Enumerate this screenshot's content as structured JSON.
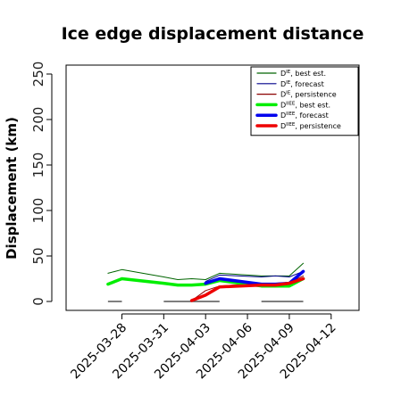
{
  "chart_data": {
    "type": "line",
    "title": "Ice edge displacement distance",
    "ylabel": "Displacement (km)",
    "xlabel": "",
    "ylim": [
      0,
      260
    ],
    "yticks": [
      0,
      50,
      100,
      150,
      200,
      250
    ],
    "xlim": [
      "2025-03-24",
      "2025-04-14"
    ],
    "xticks": [
      {
        "date": "2025-03-28",
        "label": "2025-03-28",
        "color": "#000000"
      },
      {
        "date": "2025-03-31",
        "label": "2025-03-31",
        "color": "#000000"
      },
      {
        "date": "2025-04-03",
        "label": "2025-04-03",
        "color": "#008000"
      },
      {
        "date": "2025-04-06",
        "label": "2025-04-06",
        "color": "#000000"
      },
      {
        "date": "2025-04-09",
        "label": "2025-04-09",
        "color": "#000000"
      },
      {
        "date": "2025-04-12",
        "label": "2025-04-12",
        "color": "#000000"
      }
    ],
    "legend": {
      "placement": "top-right",
      "entries": [
        {
          "label": "D^IE, best est.",
          "base": "D",
          "sup": "IE",
          "rest": ", best est.",
          "color": "#006400",
          "thick": false
        },
        {
          "label": "D^IE, forecast",
          "base": "D",
          "sup": "IE",
          "rest": ", forecast",
          "color": "#00008B",
          "thick": false
        },
        {
          "label": "D^IE, persistence",
          "base": "D",
          "sup": "IE",
          "rest": ", persistence",
          "color": "#8B0000",
          "thick": false
        },
        {
          "label": "D^IIEE, best est.",
          "base": "D",
          "sup": "IIEE",
          "rest": ", best est.",
          "color": "#00EE00",
          "thick": true
        },
        {
          "label": "D^IIEE, forecast",
          "base": "D",
          "sup": "IIEE",
          "rest": ", forecast",
          "color": "#0000EE",
          "thick": true
        },
        {
          "label": "D^IIEE, persistence",
          "base": "D",
          "sup": "IIEE",
          "rest": ", persistence",
          "color": "#EE0000",
          "thick": true
        }
      ]
    },
    "series": [
      {
        "name": "D^IE, best est.",
        "color": "#006400",
        "width": 1,
        "x": [
          "2025-03-27",
          "2025-03-28",
          "2025-03-31",
          "2025-04-01",
          "2025-04-02",
          "2025-04-03",
          "2025-04-04",
          "2025-04-07",
          "2025-04-08",
          "2025-04-09",
          "2025-04-10"
        ],
        "y": [
          31,
          35,
          27,
          24,
          25,
          24,
          31,
          28,
          28,
          28,
          42
        ]
      },
      {
        "name": "D^IE, forecast",
        "color": "#00008B",
        "width": 1,
        "x": [
          "2025-04-03",
          "2025-04-04",
          "2025-04-07",
          "2025-04-08",
          "2025-04-09",
          "2025-04-10"
        ],
        "y": [
          22,
          29,
          27,
          28,
          27,
          33
        ]
      },
      {
        "name": "D^IE, persistence",
        "color": "#8B0000",
        "width": 1,
        "x": [
          "2025-04-02",
          "2025-04-03",
          "2025-04-04",
          "2025-04-07",
          "2025-04-08",
          "2025-04-09",
          "2025-04-10"
        ],
        "y": [
          1,
          12,
          17,
          20,
          20,
          21,
          28
        ]
      },
      {
        "name": "D^IIEE, best est.",
        "color": "#00EE00",
        "width": 3.5,
        "x": [
          "2025-03-27",
          "2025-03-28",
          "2025-03-31",
          "2025-04-01",
          "2025-04-02",
          "2025-04-03",
          "2025-04-04",
          "2025-04-07",
          "2025-04-08",
          "2025-04-09",
          "2025-04-10"
        ],
        "y": [
          19,
          25,
          20,
          18,
          18,
          19,
          23,
          17,
          17,
          17,
          25
        ]
      },
      {
        "name": "D^IIEE, forecast",
        "color": "#0000EE",
        "width": 3.5,
        "x": [
          "2025-04-03",
          "2025-04-04",
          "2025-04-07",
          "2025-04-08",
          "2025-04-09",
          "2025-04-10"
        ],
        "y": [
          20,
          25,
          19,
          19,
          20,
          33
        ]
      },
      {
        "name": "D^IIEE, persistence",
        "color": "#EE0000",
        "width": 3.5,
        "x": [
          "2025-04-02",
          "2025-04-03",
          "2025-04-04",
          "2025-04-07",
          "2025-04-08",
          "2025-04-09",
          "2025-04-10"
        ],
        "y": [
          1,
          7,
          16,
          18,
          18,
          20,
          25
        ]
      }
    ],
    "baseline_segments": {
      "color": "#555555",
      "y": 0,
      "ranges": [
        [
          "2025-03-27",
          "2025-03-28"
        ],
        [
          "2025-03-31",
          "2025-04-04"
        ],
        [
          "2025-04-07",
          "2025-04-10"
        ]
      ]
    }
  }
}
